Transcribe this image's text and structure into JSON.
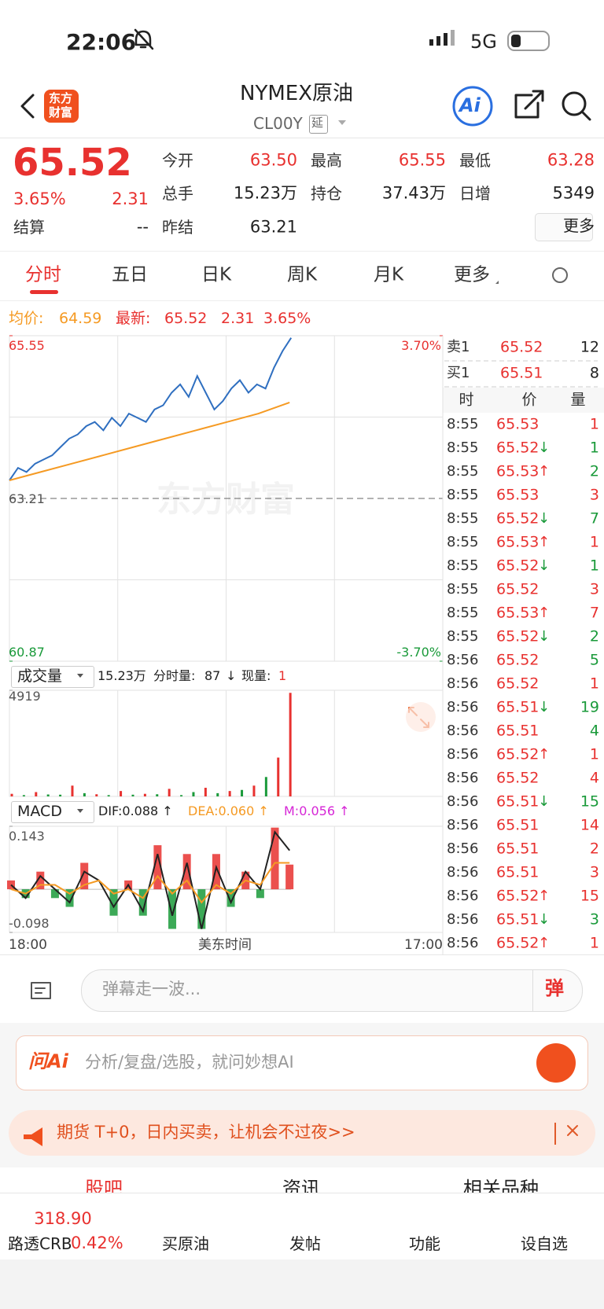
{
  "status": {
    "time": "22:06",
    "network": "5G"
  },
  "header": {
    "logo": [
      "东方",
      "财富"
    ],
    "title": "NYMEX原油",
    "code": "CL00Y",
    "delay": "延",
    "ai": "Ai"
  },
  "quote": {
    "price": "65.52",
    "change_pct": "3.65%",
    "change": "2.31",
    "fields": [
      {
        "label": "今开",
        "value": "63.50"
      },
      {
        "label": "最高",
        "value": "65.55"
      },
      {
        "label": "最低",
        "value": "63.28"
      },
      {
        "label": "总手",
        "value": "15.23万"
      },
      {
        "label": "持仓",
        "value": "37.43万"
      },
      {
        "label": "日增",
        "value": "5349"
      },
      {
        "label": "结算",
        "value": "--"
      },
      {
        "label": "昨结",
        "value": "63.21"
      }
    ],
    "more": "更多"
  },
  "tabs": [
    "分时",
    "五日",
    "日K",
    "周K",
    "月K",
    "更多"
  ],
  "info": {
    "avg_label": "均价:",
    "avg": "64.59",
    "last_label": "最新:",
    "last": "65.52",
    "change": "2.31",
    "change_pct": "3.65%"
  },
  "price_chart": {
    "type": "line",
    "watermark": "东方财富",
    "ylim": [
      60.87,
      65.55
    ],
    "yticks": [
      65.55,
      63.21,
      60.87
    ],
    "y2lim": [
      -3.7,
      3.7
    ],
    "y2ticks": [
      {
        "value": 3.7,
        "label": "3.70%"
      },
      {
        "value": -3.7,
        "label": "-3.70%"
      }
    ],
    "series": [
      {
        "color": "#2f6fc0",
        "values": [
          63.47,
          63.65,
          63.59,
          63.71,
          63.77,
          63.83,
          63.95,
          64.07,
          64.13,
          64.25,
          64.31,
          64.19,
          64.37,
          64.25,
          64.43,
          64.37,
          64.31,
          64.49,
          64.55,
          64.73,
          64.85,
          64.67,
          64.97,
          64.73,
          64.49,
          64.61,
          64.79,
          64.91,
          64.73,
          64.85,
          64.79,
          65.09,
          65.33,
          65.52
        ]
      },
      {
        "color": "#f59a23",
        "values": [
          63.47,
          63.59,
          63.71,
          63.83,
          63.95,
          64.07,
          64.19,
          64.31,
          64.43,
          64.59
        ]
      }
    ]
  },
  "volume_chart": {
    "type": "bar",
    "label": "成交量",
    "total": "15.23万",
    "tick_label": "分时量:",
    "tick_vol": "87",
    "arrow": "↓",
    "now_label": "现量:",
    "now": "1",
    "ylim": [
      0,
      4919
    ],
    "yticks": [
      4919
    ],
    "values": [
      120,
      60,
      200,
      90,
      80,
      500,
      150,
      100,
      60,
      250,
      80,
      120,
      100,
      350,
      60,
      200,
      400,
      150,
      250,
      300,
      500,
      900,
      1800,
      4800
    ],
    "colors": [
      "#e8312f",
      "#1a9a3a",
      "#e8312f",
      "#1a9a3a",
      "#1a9a3a",
      "#e8312f",
      "#1a9a3a",
      "#e8312f",
      "#1a9a3a",
      "#e8312f",
      "#1a9a3a",
      "#e8312f",
      "#1a9a3a",
      "#e8312f",
      "#1a9a3a",
      "#1a9a3a",
      "#e8312f",
      "#1a9a3a",
      "#e8312f",
      "#1a9a3a",
      "#e8312f",
      "#1a9a3a",
      "#e8312f",
      "#e8312f"
    ]
  },
  "macd_chart": {
    "type": "line",
    "label": "MACD",
    "dif": "DIF:0.088 ↑",
    "dea": "DEA:0.060 ↑",
    "m": "M:0.056 ↑",
    "ylim": [
      -0.098,
      0.143
    ],
    "yticks": [
      0.143,
      -0.098
    ],
    "series": [
      {
        "color": "#222222",
        "values": [
          0.01,
          -0.02,
          0.03,
          0.0,
          -0.03,
          0.04,
          0.02,
          -0.04,
          0.01,
          -0.05,
          0.08,
          -0.06,
          0.06,
          -0.09,
          0.05,
          -0.03,
          0.04,
          0.0,
          0.13,
          0.088
        ]
      },
      {
        "color": "#f59a23",
        "values": [
          0.0,
          -0.01,
          0.01,
          0.01,
          -0.01,
          0.01,
          0.02,
          -0.01,
          0.0,
          -0.02,
          0.03,
          -0.01,
          0.02,
          -0.03,
          0.01,
          -0.01,
          0.02,
          0.01,
          0.06,
          0.06
        ]
      }
    ],
    "hist": [
      0.02,
      -0.02,
      0.04,
      -0.02,
      -0.04,
      0.06,
      0.0,
      -0.06,
      0.02,
      -0.06,
      0.1,
      -0.09,
      0.08,
      -0.09,
      0.08,
      -0.04,
      0.04,
      -0.02,
      0.14,
      0.056
    ]
  },
  "time_axis": [
    "18:00",
    "美东时间",
    "17:00"
  ],
  "order_book": {
    "levels": [
      {
        "label": "卖1",
        "price": "65.52",
        "vol": "12"
      },
      {
        "label": "买1",
        "price": "65.51",
        "vol": "8"
      }
    ],
    "headers": [
      "时",
      "价",
      "量"
    ],
    "trades": [
      {
        "time": "8:55",
        "price": "65.53",
        "vol": 1,
        "vol_color": "#e8312f"
      },
      {
        "time": "8:55",
        "price": "65.52",
        "arrow": "↓",
        "vol": 1,
        "vol_color": "#1a9a3a"
      },
      {
        "time": "8:55",
        "price": "65.53",
        "arrow": "↑",
        "vol": 2,
        "vol_color": "#1a9a3a"
      },
      {
        "time": "8:55",
        "price": "65.53",
        "vol": 3,
        "vol_color": "#e8312f"
      },
      {
        "time": "8:55",
        "price": "65.52",
        "arrow": "↓",
        "vol": 7,
        "vol_color": "#1a9a3a"
      },
      {
        "time": "8:55",
        "price": "65.53",
        "arrow": "↑",
        "vol": 1,
        "vol_color": "#e8312f"
      },
      {
        "time": "8:55",
        "price": "65.52",
        "arrow": "↓",
        "vol": 1,
        "vol_color": "#1a9a3a"
      },
      {
        "time": "8:55",
        "price": "65.52",
        "vol": 3,
        "vol_color": "#e8312f"
      },
      {
        "time": "8:55",
        "price": "65.53",
        "arrow": "↑",
        "vol": 7,
        "vol_color": "#e8312f"
      },
      {
        "time": "8:55",
        "price": "65.52",
        "arrow": "↓",
        "vol": 2,
        "vol_color": "#1a9a3a"
      },
      {
        "time": "8:56",
        "price": "65.52",
        "vol": 5,
        "vol_color": "#1a9a3a"
      },
      {
        "time": "8:56",
        "price": "65.52",
        "vol": 1,
        "vol_color": "#e8312f"
      },
      {
        "time": "8:56",
        "price": "65.51",
        "arrow": "↓",
        "vol": 19,
        "vol_color": "#1a9a3a"
      },
      {
        "time": "8:56",
        "price": "65.51",
        "vol": 4,
        "vol_color": "#1a9a3a"
      },
      {
        "time": "8:56",
        "price": "65.52",
        "arrow": "↑",
        "vol": 1,
        "vol_color": "#e8312f"
      },
      {
        "time": "8:56",
        "price": "65.52",
        "vol": 4,
        "vol_color": "#e8312f"
      },
      {
        "time": "8:56",
        "price": "65.51",
        "arrow": "↓",
        "vol": 15,
        "vol_color": "#1a9a3a"
      },
      {
        "time": "8:56",
        "price": "65.51",
        "vol": 14,
        "vol_color": "#e8312f"
      },
      {
        "time": "8:56",
        "price": "65.51",
        "vol": 2,
        "vol_color": "#e8312f"
      },
      {
        "time": "8:56",
        "price": "65.51",
        "vol": 3,
        "vol_color": "#e8312f"
      },
      {
        "time": "8:56",
        "price": "65.52",
        "arrow": "↑",
        "vol": 15,
        "vol_color": "#e8312f"
      },
      {
        "time": "8:56",
        "price": "65.51",
        "arrow": "↓",
        "vol": 3,
        "vol_color": "#1a9a3a"
      },
      {
        "time": "8:56",
        "price": "65.52",
        "arrow": "↑",
        "vol": 1,
        "vol_color": "#e8312f"
      }
    ]
  },
  "comment": {
    "placeholder": "弹幕走一波...",
    "button": "弹"
  },
  "ai": {
    "logo": "问Ai",
    "placeholder": "分析/复盘/选股，就问妙想AI"
  },
  "promo": {
    "text": "期货 T+0，日内买卖，让机会不过夜>>"
  },
  "sections": [
    "股吧",
    "资讯",
    "相关品种"
  ],
  "bottom_nav": {
    "index_value": "318.90",
    "index_name": "路透CRB",
    "index_change": "0.42%",
    "items": [
      "买原油",
      "发帖",
      "功能",
      "设自选"
    ]
  }
}
